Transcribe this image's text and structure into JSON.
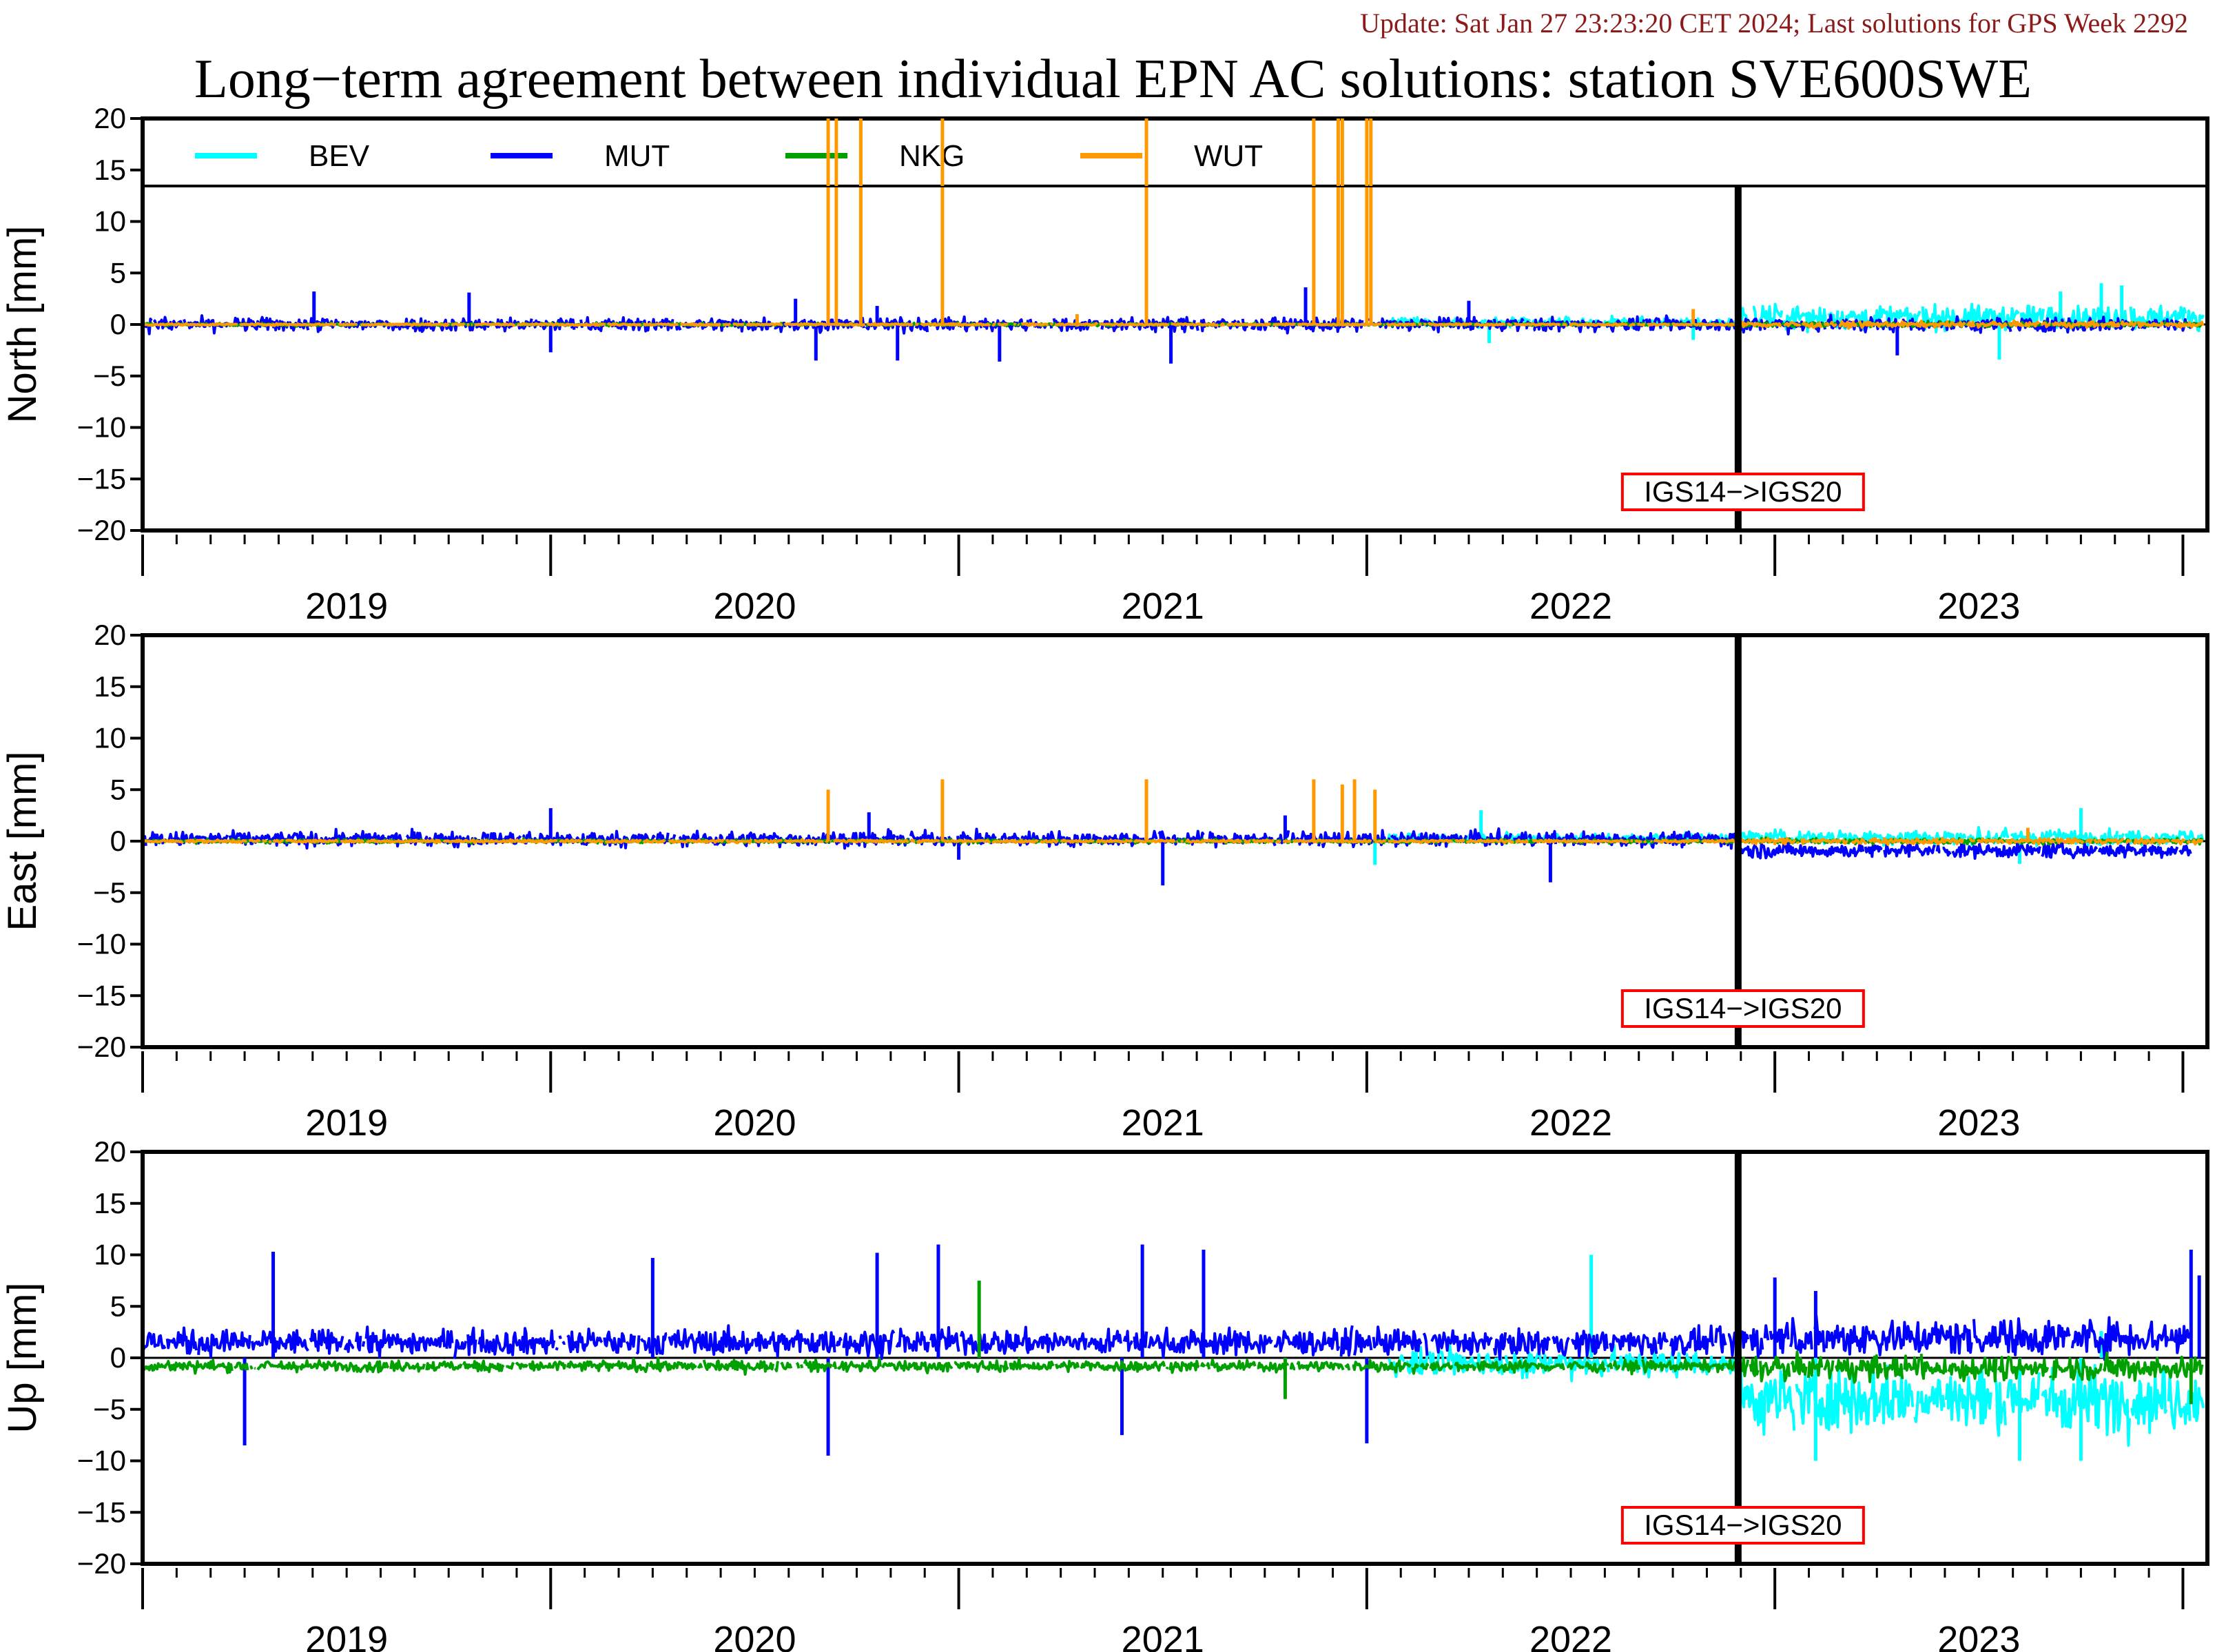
{
  "header": {
    "update": "Update: Sat Jan 27 23:23:20 CET 2024; Last solutions for GPS Week 2292",
    "title": "Long−term agreement between individual EPN AC solutions: station SVE600SWE"
  },
  "colors": {
    "BEV": "#00ffff",
    "MUT": "#0000ff",
    "NKG": "#00a000",
    "WUT": "#ff9900",
    "annotation_border": "#ff0000"
  },
  "chart_data": {
    "type": "line",
    "x_unit": "decimal year",
    "xlim": [
      2018.5,
      2023.56
    ],
    "year_tick_labels": [
      "2019",
      "2020",
      "2021",
      "2022",
      "2023"
    ],
    "y_ticks": [
      20,
      15,
      10,
      5,
      0,
      -5,
      -10,
      -15,
      -20
    ],
    "y_tick_labels": [
      "20",
      "15",
      "10",
      "5",
      "0",
      "−5",
      "−10",
      "−15",
      "−20"
    ],
    "legend": [
      "BEV",
      "MUT",
      "NKG",
      "WUT"
    ],
    "legend_placement": "top-left, inside first panel",
    "grid": false,
    "reference_line_y": 0,
    "frame_change": {
      "x": 2022.41,
      "label": "IGS14−>IGS20"
    },
    "panels": [
      {
        "ylabel": "North [mm]",
        "ylim": [
          -20,
          20
        ],
        "series": [
          {
            "name": "BEV",
            "start": 2021.55,
            "end": 2023.55,
            "offset": [
              0.2,
              0.7
            ],
            "noise": [
              0.5,
              1.3
            ],
            "spikes": [
              [
                2023.05,
                -3.4
              ],
              [
                2023.2,
                3.2
              ],
              [
                2023.3,
                4.0
              ],
              [
                2023.35,
                3.8
              ],
              [
                2021.8,
                -1.8
              ],
              [
                2022.3,
                -1.5
              ]
            ]
          },
          {
            "name": "MUT",
            "start": 2018.5,
            "end": 2023.52,
            "offset": [
              0.0,
              0.0
            ],
            "noise": [
              0.75,
              0.8
            ],
            "spikes": [
              [
                2018.92,
                3.2
              ],
              [
                2019.3,
                3.1
              ],
              [
                2019.5,
                -2.7
              ],
              [
                2020.1,
                2.5
              ],
              [
                2020.15,
                -3.5
              ],
              [
                2020.3,
                1.8
              ],
              [
                2020.35,
                -3.5
              ],
              [
                2020.6,
                -3.6
              ],
              [
                2021.02,
                -3.8
              ],
              [
                2021.35,
                3.6
              ],
              [
                2021.75,
                2.3
              ],
              [
                2022.8,
                -3.0
              ]
            ]
          },
          {
            "name": "NKG",
            "start": 2018.5,
            "end": 2023.55,
            "offset": [
              0.0,
              0.0
            ],
            "noise": [
              0.15,
              0.25
            ],
            "spikes": []
          },
          {
            "name": "WUT",
            "start": 2018.5,
            "end": 2023.55,
            "offset": [
              0.0,
              0.0
            ],
            "noise": [
              0.1,
              0.3
            ],
            "spikes": [
              [
                2020.18,
                30.0
              ],
              [
                2020.2,
                30.0
              ],
              [
                2020.26,
                30.0
              ],
              [
                2020.46,
                30.0
              ],
              [
                2020.96,
                30.0
              ],
              [
                2021.37,
                30.0
              ],
              [
                2021.43,
                30.0
              ],
              [
                2021.44,
                30.0
              ],
              [
                2021.5,
                30.0
              ],
              [
                2021.51,
                30.0
              ],
              [
                2020.79,
                1.0
              ],
              [
                2022.3,
                1.5
              ]
            ]
          }
        ]
      },
      {
        "ylabel": "East [mm]",
        "ylim": [
          -20,
          20
        ],
        "series": [
          {
            "name": "BEV",
            "start": 2021.55,
            "end": 2023.55,
            "offset": [
              0.3,
              0.4
            ],
            "noise": [
              0.5,
              0.8
            ],
            "spikes": [
              [
                2021.78,
                3.0
              ],
              [
                2021.52,
                -2.3
              ],
              [
                2023.25,
                3.2
              ],
              [
                2023.1,
                -2.2
              ]
            ]
          },
          {
            "name": "MUT",
            "start": 2018.5,
            "end": 2023.52,
            "offset": [
              0.2,
              -0.9
            ],
            "noise": [
              0.8,
              0.8
            ],
            "spikes": [
              [
                2019.5,
                3.2
              ],
              [
                2020.28,
                2.8
              ],
              [
                2020.5,
                -1.8
              ],
              [
                2021.0,
                -4.3
              ],
              [
                2021.3,
                2.5
              ],
              [
                2021.95,
                -4.0
              ]
            ]
          },
          {
            "name": "NKG",
            "start": 2018.5,
            "end": 2023.55,
            "offset": [
              0.0,
              0.0
            ],
            "noise": [
              0.2,
              0.3
            ],
            "spikes": []
          },
          {
            "name": "WUT",
            "start": 2018.5,
            "end": 2023.55,
            "offset": [
              0.0,
              0.0
            ],
            "noise": [
              0.15,
              0.3
            ],
            "spikes": [
              [
                2020.18,
                5.0
              ],
              [
                2020.46,
                6.0
              ],
              [
                2020.96,
                6.0
              ],
              [
                2021.37,
                6.0
              ],
              [
                2021.44,
                5.5
              ],
              [
                2021.47,
                6.0
              ],
              [
                2021.52,
                5.0
              ],
              [
                2023.12,
                1.3
              ]
            ]
          }
        ]
      },
      {
        "ylabel": "Up [mm]",
        "ylim": [
          -20,
          20
        ],
        "series": [
          {
            "name": "BEV",
            "start": 2021.55,
            "end": 2023.55,
            "offset": [
              -0.5,
              -4.0
            ],
            "noise": [
              1.5,
              3.5
            ],
            "spikes": [
              [
                2022.05,
                10.0
              ],
              [
                2022.6,
                -10.0
              ],
              [
                2023.1,
                -10.0
              ],
              [
                2023.25,
                -10.0
              ],
              [
                2023.3,
                2.6
              ]
            ]
          },
          {
            "name": "MUT",
            "start": 2018.5,
            "end": 2023.52,
            "offset": [
              1.5,
              2.0
            ],
            "noise": [
              1.4,
              2.0
            ],
            "spikes": [
              [
                2018.75,
                -8.5
              ],
              [
                2018.82,
                10.3
              ],
              [
                2019.75,
                9.7
              ],
              [
                2020.18,
                -9.5
              ],
              [
                2020.3,
                10.2
              ],
              [
                2020.45,
                11.0
              ],
              [
                2020.9,
                -7.5
              ],
              [
                2020.95,
                11.0
              ],
              [
                2021.1,
                10.5
              ],
              [
                2021.5,
                -8.3
              ],
              [
                2022.5,
                7.8
              ],
              [
                2022.6,
                6.5
              ],
              [
                2023.52,
                10.5
              ],
              [
                2023.54,
                8.0
              ]
            ]
          },
          {
            "name": "NKG",
            "start": 2018.5,
            "end": 2023.55,
            "offset": [
              -0.8,
              -1.0
            ],
            "noise": [
              0.6,
              1.3
            ],
            "spikes": [
              [
                2020.55,
                7.5
              ],
              [
                2021.3,
                -4.0
              ],
              [
                2023.52,
                -4.5
              ]
            ]
          },
          {
            "name": "WUT",
            "start": 2018.5,
            "end": 2023.55,
            "offset": [
              0.0,
              0.0
            ],
            "noise": [
              0.0,
              0.0
            ],
            "spikes": []
          }
        ]
      }
    ]
  }
}
